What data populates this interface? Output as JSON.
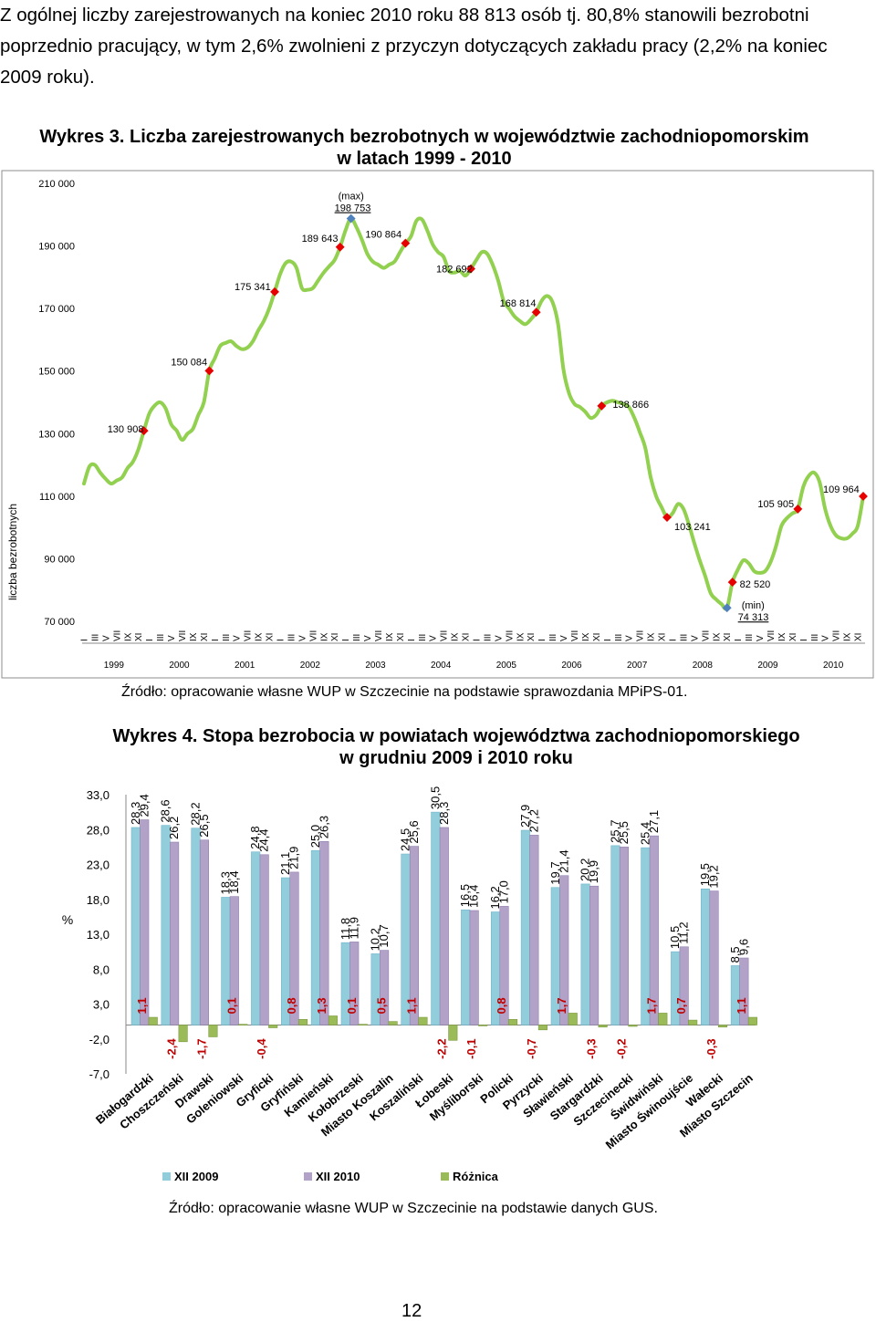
{
  "paragraph": "Z ogólnej liczby zarejestrowanych na koniec 2010 roku 88 813 osób tj. 80,8% stanowili bezrobotni poprzednio pracujący, w tym 2,6% zwolnieni z przyczyn dotyczących zakładu pracy (2,2% na koniec 2009 roku).",
  "chart3": {
    "label": "Wykres 3.",
    "title_line1": "Liczba zarejestrowanych bezrobotnych w województwie zachodniopomorskim",
    "title_line2": "w latach 1999 - 2010",
    "source": "Źródło: opracowanie własne WUP w Szczecinie na podstawie sprawozdania MPiPS-01."
  },
  "chart4": {
    "label": "Wykres 4.",
    "title_line1": "Stopa bezrobocia w powiatach województwa zachodniopomorskiego",
    "title_line2": "w grudniu 2009 i 2010 roku",
    "source": "Źródło: opracowanie własne WUP w Szczecinie na podstawie danych GUS."
  },
  "page_number": "12",
  "chart_data": [
    {
      "type": "line",
      "ylabel": "liczba bezrobotnych",
      "ylim": [
        70000,
        210000
      ],
      "yticks": [
        "210 000",
        "190 000",
        "170 000",
        "150 000",
        "130 000",
        "110 000",
        "90 000",
        "70 000"
      ],
      "month_ticks": [
        "I",
        "III",
        "V",
        "VII",
        "IX",
        "XI"
      ],
      "years": [
        "1999",
        "2000",
        "2001",
        "2002",
        "2003",
        "2004",
        "2005",
        "2006",
        "2007",
        "2008",
        "2009",
        "2010"
      ],
      "color": "#92D050",
      "values": [
        114000,
        119500,
        120000,
        117500,
        115500,
        114000,
        115000,
        116000,
        119000,
        121000,
        125000,
        130908,
        136500,
        139000,
        140000,
        138000,
        133000,
        131000,
        128000,
        130000,
        131500,
        136000,
        140000,
        150084,
        154000,
        158000,
        159000,
        159500,
        158000,
        157000,
        157500,
        159500,
        163000,
        166000,
        170000,
        175341,
        181000,
        184500,
        185000,
        183000,
        176500,
        176000,
        176500,
        179000,
        181500,
        183500,
        185500,
        189643,
        195000,
        198753,
        196000,
        192000,
        187500,
        185000,
        184000,
        183000,
        184000,
        185000,
        188000,
        190864,
        193000,
        198000,
        198500,
        195000,
        190500,
        188000,
        186500,
        182000,
        181500,
        182000,
        180500,
        182692,
        185500,
        188000,
        187500,
        184000,
        179000,
        172500,
        170000,
        167500,
        166000,
        165000,
        166500,
        168814,
        172500,
        174000,
        172000,
        165000,
        150500,
        143000,
        139500,
        138500,
        137000,
        135000,
        136000,
        138866,
        140000,
        140500,
        140000,
        139500,
        138500,
        135000,
        130500,
        125500,
        116000,
        110000,
        106500,
        103241,
        104500,
        107500,
        106000,
        101000,
        95000,
        89500,
        84500,
        79000,
        77000,
        75500,
        74313,
        82520,
        86500,
        89500,
        88500,
        86000,
        85500,
        86000,
        89000,
        94000,
        100500,
        103000,
        104500,
        105905,
        113000,
        116500,
        117500,
        114500,
        106000,
        100500,
        97500,
        96500,
        96500,
        98000,
        100500,
        109964
      ],
      "annotations": [
        {
          "label": "130 908",
          "index": 11
        },
        {
          "label": "150 084",
          "index": 23
        },
        {
          "label": "175 341",
          "index": 35
        },
        {
          "label": "189 643",
          "index": 47
        },
        {
          "label": "198 753",
          "index": 49,
          "note": "(max)"
        },
        {
          "label": "190 864",
          "index": 59
        },
        {
          "label": "182 692",
          "index": 71
        },
        {
          "label": "168 814",
          "index": 83
        },
        {
          "label": "138 866",
          "index": 95
        },
        {
          "label": "103 241",
          "index": 107
        },
        {
          "label": "74 313",
          "index": 118,
          "note": "(min)"
        },
        {
          "label": "82 520",
          "index": 119
        },
        {
          "label": "105 905",
          "index": 131
        },
        {
          "label": "109 964",
          "index": 143
        }
      ]
    },
    {
      "type": "bar",
      "ylabel": "%",
      "ylim": [
        -7,
        33
      ],
      "yticks": [
        "33,0",
        "28,0",
        "23,0",
        "18,0",
        "13,0",
        "8,0",
        "3,0",
        "-2,0",
        "-7,0"
      ],
      "categories": [
        "Białogardzki",
        "Choszczeński",
        "Drawski",
        "Goleniowski",
        "Gryficki",
        "Gryfiński",
        "Kamieński",
        "Kołobrzeski",
        "Miasto Koszalin",
        "Koszaliński",
        "Łobeski",
        "Myśliborski",
        "Policki",
        "Pyrzycki",
        "Sławieński",
        "Stargardzki",
        "Szczecinecki",
        "Świdwiński",
        "Miasto Świnoujście",
        "Wałecki",
        "Miasto Szczecin"
      ],
      "series": [
        {
          "name": "XII 2009",
          "color": "#92CDDC",
          "values": [
            28.3,
            28.6,
            28.2,
            18.3,
            24.8,
            21.1,
            25.0,
            11.8,
            10.2,
            24.5,
            30.5,
            16.5,
            16.2,
            27.9,
            19.7,
            20.2,
            25.7,
            25.4,
            10.5,
            19.5,
            8.5
          ],
          "labels": [
            "28,3",
            "28,6",
            "28,2",
            "18,3",
            "24,8",
            "21,1",
            "25,0",
            "11,8",
            "10,2",
            "24,5",
            "30,5",
            "16,5",
            "16,2",
            "27,9",
            "19,7",
            "20,2",
            "25,7",
            "25,4",
            "10,5",
            "19,5",
            "8,5"
          ]
        },
        {
          "name": "XII 2010",
          "color": "#B3A2C7",
          "values": [
            29.4,
            26.2,
            26.5,
            18.4,
            24.4,
            21.9,
            26.3,
            11.9,
            10.7,
            25.6,
            28.3,
            16.4,
            17.0,
            27.2,
            21.4,
            19.9,
            25.5,
            27.1,
            11.2,
            19.2,
            9.6
          ],
          "labels": [
            "29,4",
            "26,2",
            "26,5",
            "18,4",
            "24,4",
            "21,9",
            "26,3",
            "11,9",
            "10,7",
            "25,6",
            "28,3",
            "16,4",
            "17,0",
            "27,2",
            "21,4",
            "19,9",
            "25,5",
            "27,1",
            "11,2",
            "19,2",
            "9,6"
          ]
        },
        {
          "name": "Różnica",
          "color": "#9BBB59",
          "values": [
            1.1,
            -2.4,
            -1.7,
            0.1,
            -0.4,
            0.8,
            1.3,
            0.1,
            0.5,
            1.1,
            -2.2,
            -0.1,
            0.8,
            -0.7,
            1.7,
            -0.3,
            -0.2,
            1.7,
            0.7,
            -0.3,
            1.1
          ],
          "labels": [
            "1,1",
            "-2,4",
            "-1,7",
            "0,1",
            "-0,4",
            "0,8",
            "1,3",
            "0,1",
            "0,5",
            "1,1",
            "-2,2",
            "-0,1",
            "0,8",
            "-0,7",
            "1,7",
            "-0,3",
            "-0,2",
            "1,7",
            "0,7",
            "-0,3",
            "1,1"
          ],
          "label_color": "#C00000"
        }
      ]
    }
  ]
}
